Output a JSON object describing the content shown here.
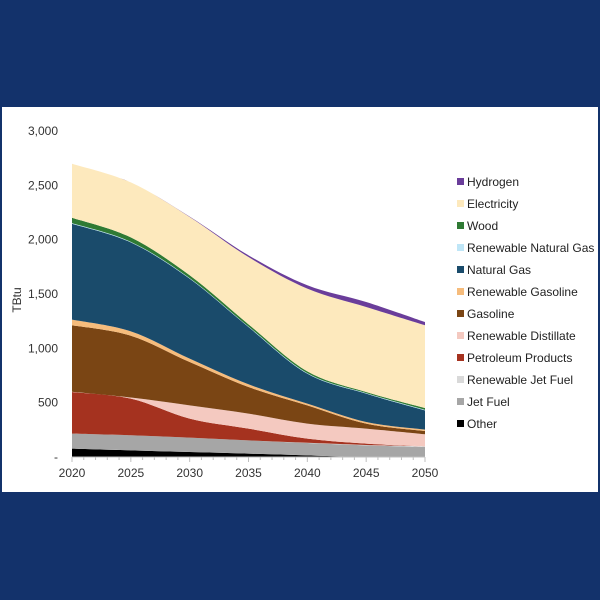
{
  "chart_data": {
    "type": "area",
    "stacked": true,
    "ylabel": "TBtu",
    "xlabel": "",
    "x": [
      2020,
      2025,
      2030,
      2035,
      2040,
      2045,
      2050
    ],
    "xticks": [
      "2020",
      "2025",
      "2030",
      "2035",
      "2040",
      "2045",
      "2050"
    ],
    "yticks": [
      "-",
      "500",
      "1,000",
      "1,500",
      "2,000",
      "2,500",
      "3,000"
    ],
    "ylim": [
      0,
      3000
    ],
    "legend_position": "right",
    "series": [
      {
        "name": "Other",
        "color": "#000000",
        "values": [
          77,
          61,
          46,
          31,
          15,
          0,
          0
        ]
      },
      {
        "name": "Jet Fuel",
        "color": "#a6a6a6",
        "values": [
          138,
          139,
          132,
          122,
          114,
          107,
          92
        ]
      },
      {
        "name": "Renewable Jet Fuel",
        "color": "#d9d9d9",
        "values": [
          0,
          0,
          0,
          0,
          2,
          4,
          6
        ]
      },
      {
        "name": "Petroleum Products",
        "color": "#a5321f",
        "values": [
          383,
          337,
          175,
          108,
          38,
          12,
          0
        ]
      },
      {
        "name": "Renewable Distillate",
        "color": "#f4c9c0",
        "values": [
          2,
          10,
          122,
          138,
          138,
          138,
          111
        ]
      },
      {
        "name": "Gasoline",
        "color": "#7a4514",
        "values": [
          612,
          569,
          399,
          245,
          168,
          46,
          30
        ]
      },
      {
        "name": "Renewable Gasoline",
        "color": "#f6bc7c",
        "values": [
          52,
          40,
          31,
          25,
          16,
          15,
          13
        ]
      },
      {
        "name": "Natural Gas",
        "color": "#1a4b6b",
        "values": [
          883,
          819,
          736,
          527,
          276,
          261,
          177
        ]
      },
      {
        "name": "Renewable Natural Gas",
        "color": "#bfe6f7",
        "values": [
          5,
          5,
          5,
          5,
          5,
          5,
          5
        ]
      },
      {
        "name": "Wood",
        "color": "#2f7a34",
        "values": [
          50,
          41,
          26,
          20,
          16,
          10,
          17
        ]
      },
      {
        "name": "Electricity",
        "color": "#fde9bd",
        "values": [
          497,
          506,
          537,
          619,
          761,
          782,
          761
        ]
      },
      {
        "name": "Hydrogen",
        "color": "#6a3d9a",
        "values": [
          0,
          0,
          3,
          16,
          31,
          46,
          30
        ]
      }
    ]
  }
}
